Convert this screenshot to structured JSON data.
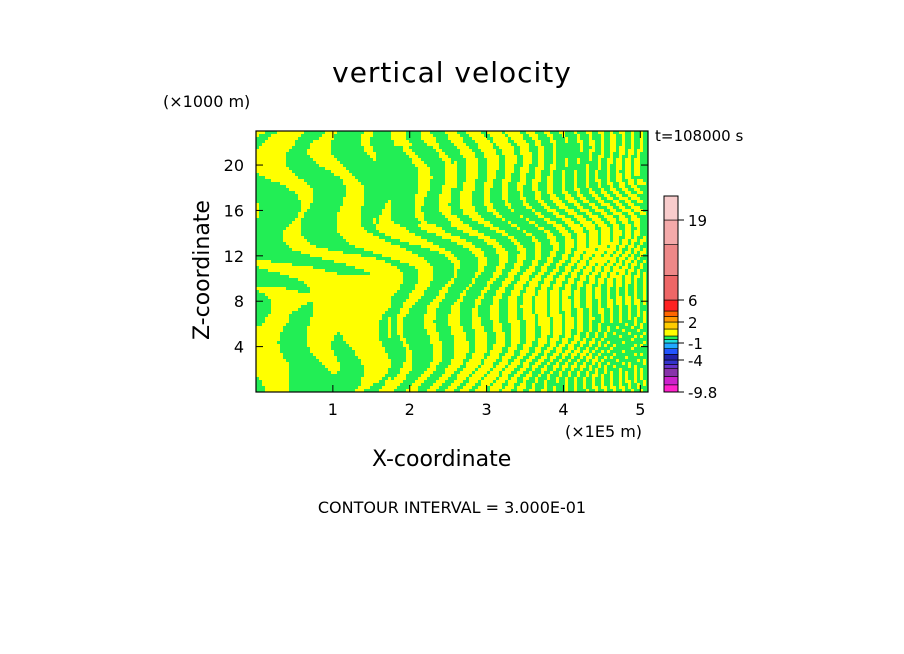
{
  "chart_data": {
    "type": "heatmap",
    "title": "vertical velocity",
    "xlabel": "X-coordinate",
    "ylabel": "Z-coordinate",
    "x_units": "(×1E5 m)",
    "y_units": "(×1000 m)",
    "time_label": "t=108000 s",
    "footer": "CONTOUR INTERVAL = 3.000E-01",
    "xlim": [
      0,
      5.1
    ],
    "ylim": [
      0,
      23
    ],
    "x_ticks": [
      1,
      2,
      3,
      4,
      5
    ],
    "y_ticks": [
      4,
      8,
      12,
      16,
      20
    ],
    "colors": {
      "positive": "#ffff00",
      "negative": "#22ee55"
    },
    "colorbar": {
      "labels": [
        {
          "text": "19",
          "value": 19
        },
        {
          "text": "6",
          "value": 6
        },
        {
          "text": "2",
          "value": 2
        },
        {
          "text": "-1",
          "value": -1
        },
        {
          "text": "-4",
          "value": -4
        },
        {
          "text": "-9.8",
          "value": -9.8
        }
      ],
      "bands": [
        {
          "level": -9.8,
          "color": "#ff22cc"
        },
        {
          "level": -8.5,
          "color": "#cc22cc"
        },
        {
          "level": -7.0,
          "color": "#8833aa"
        },
        {
          "level": -5.5,
          "color": "#6633cc"
        },
        {
          "level": -4.8,
          "color": "#3333cc"
        },
        {
          "level": -4.0,
          "color": "#2222aa"
        },
        {
          "level": -3.0,
          "color": "#2255ff"
        },
        {
          "level": -2.0,
          "color": "#22aaff"
        },
        {
          "level": -1.0,
          "color": "#22dddd"
        },
        {
          "level": -0.5,
          "color": "#22ee55"
        },
        {
          "level": 0.0,
          "color": "#ffff00"
        },
        {
          "level": 1.0,
          "color": "#ffcc00"
        },
        {
          "level": 2.0,
          "color": "#ff9900"
        },
        {
          "level": 3.0,
          "color": "#ff6600"
        },
        {
          "level": 4.0,
          "color": "#ff2222"
        },
        {
          "level": 6.0,
          "color": "#ee6666"
        },
        {
          "level": 10.0,
          "color": "#ee8888"
        },
        {
          "level": 15.0,
          "color": "#f4aaaa"
        },
        {
          "level": 19.0,
          "color": "#f8cccc"
        },
        {
          "level": 23.0,
          "color": "#fde8e8"
        }
      ]
    }
  }
}
